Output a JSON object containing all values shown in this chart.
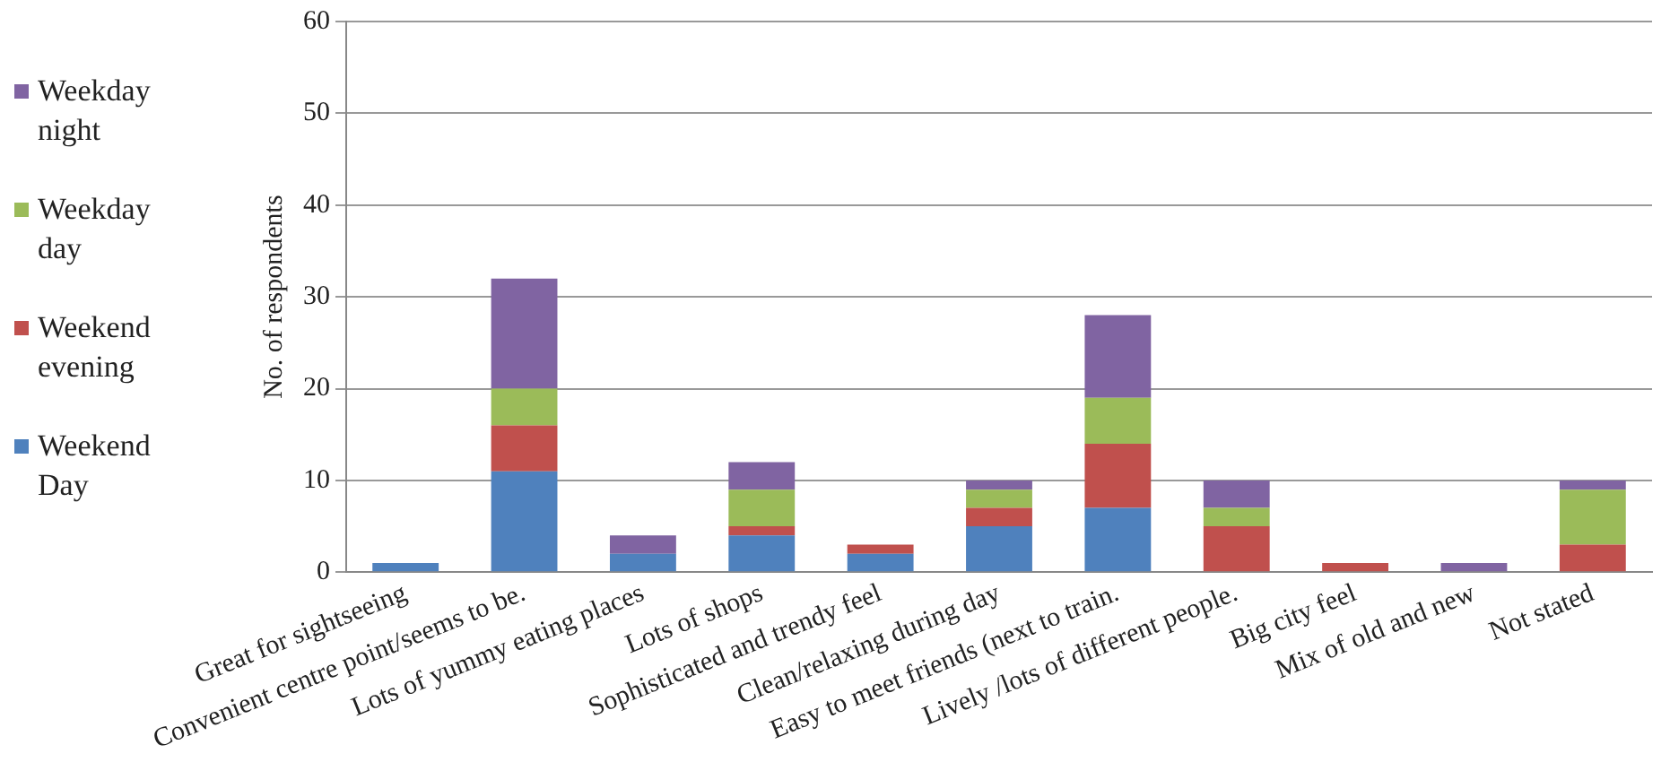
{
  "chart_data": {
    "type": "bar",
    "stacked": true,
    "ylabel": "No. of respondents",
    "categories": [
      "Great for sightseeing",
      "Convenient centre point/seems to be.",
      "Lots of yummy eating places",
      "Lots of shops",
      "Sophisticated and trendy feel",
      "Clean/relaxing during day",
      "Easy to meet friends (next to train.",
      "Lively /lots of different people.",
      "Big city feel",
      "Mix of old and new",
      "Not stated"
    ],
    "series": [
      {
        "name": "Weekend Day",
        "color": "#4f81bd",
        "values": [
          1,
          11,
          2,
          4,
          2,
          5,
          7,
          0,
          0,
          0,
          0
        ]
      },
      {
        "name": "Weekend evening",
        "color": "#c0504d",
        "values": [
          0,
          5,
          0,
          1,
          1,
          2,
          7,
          5,
          1,
          0,
          3
        ]
      },
      {
        "name": "Weekday day",
        "color": "#9bbb59",
        "values": [
          0,
          4,
          0,
          4,
          0,
          2,
          5,
          2,
          0,
          0,
          6
        ]
      },
      {
        "name": "Weekday night",
        "color": "#8064a2",
        "values": [
          0,
          12,
          2,
          3,
          0,
          1,
          9,
          3,
          0,
          1,
          1
        ]
      }
    ],
    "ylim": [
      0,
      60
    ],
    "yticks": [
      0,
      10,
      20,
      30,
      40,
      50,
      60
    ],
    "grid": "y",
    "legend": "left"
  }
}
